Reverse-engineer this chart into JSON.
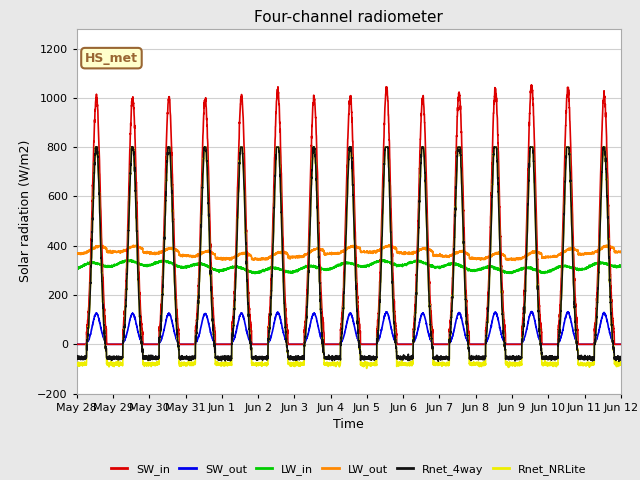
{
  "title": "Four-channel radiometer",
  "xlabel": "Time",
  "ylabel": "Solar radiation (W/m2)",
  "ylim": [
    -200,
    1280
  ],
  "yticks": [
    -200,
    0,
    200,
    400,
    600,
    800,
    1000,
    1200
  ],
  "fig_bg_color": "#e8e8e8",
  "plot_bg_color": "#ffffff",
  "grid_color": "#d0d0d0",
  "annotation_text": "HS_met",
  "annotation_bg": "#ffffcc",
  "annotation_border": "#996633",
  "series": {
    "SW_in": {
      "color": "#dd0000",
      "lw": 1.2
    },
    "SW_out": {
      "color": "#0000ee",
      "lw": 1.2
    },
    "LW_in": {
      "color": "#00cc00",
      "lw": 1.2
    },
    "LW_out": {
      "color": "#ff8800",
      "lw": 1.2
    },
    "Rnet_4way": {
      "color": "#111111",
      "lw": 1.2
    },
    "Rnet_NRLite": {
      "color": "#eeee00",
      "lw": 1.2
    }
  },
  "num_days": 15,
  "tick_labels": [
    "May 28",
    "May 29",
    "May 30",
    "May 31",
    "Jun 1",
    "Jun 2",
    "Jun 3",
    "Jun 4",
    "Jun 5",
    "Jun 6",
    "Jun 7",
    "Jun 8",
    "Jun 9",
    "Jun 10",
    "Jun 11",
    "Jun 12"
  ]
}
